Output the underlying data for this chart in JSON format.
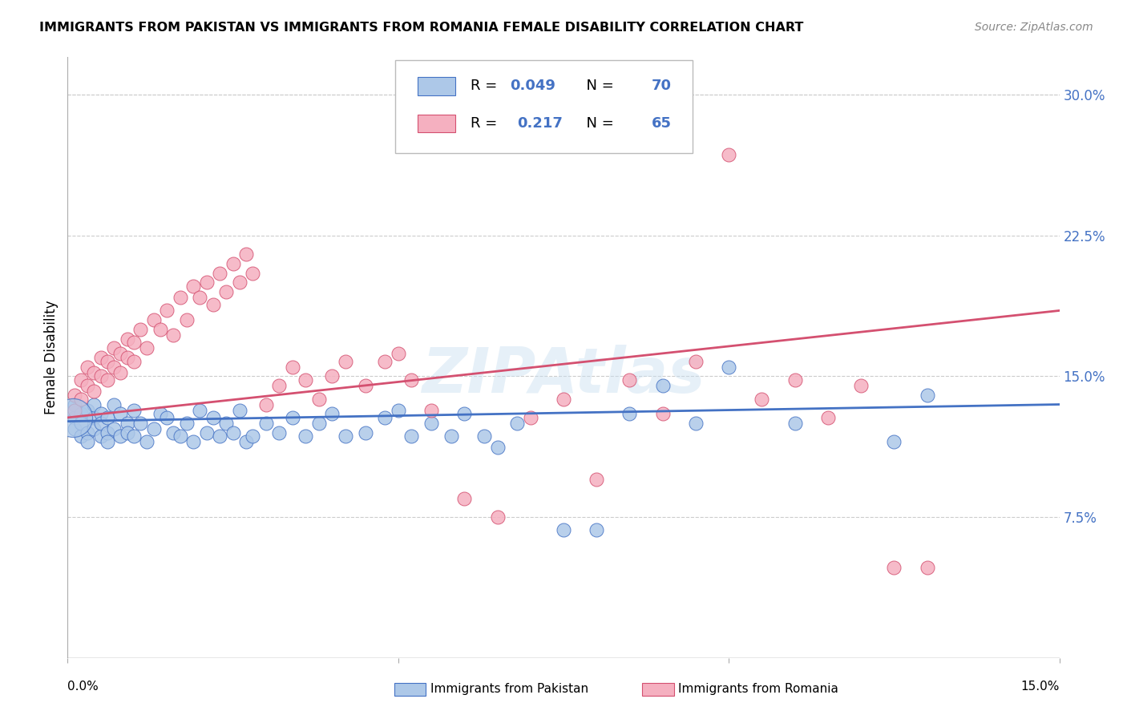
{
  "title": "IMMIGRANTS FROM PAKISTAN VS IMMIGRANTS FROM ROMANIA FEMALE DISABILITY CORRELATION CHART",
  "source": "Source: ZipAtlas.com",
  "ylabel": "Female Disability",
  "xlim": [
    0.0,
    0.15
  ],
  "ylim": [
    0.0,
    0.32
  ],
  "r_pakistan": 0.049,
  "n_pakistan": 70,
  "r_romania": 0.217,
  "n_romania": 65,
  "color_pakistan": "#adc8e8",
  "color_romania": "#f5b0c0",
  "line_color_pakistan": "#4472c4",
  "line_color_romania": "#d45070",
  "legend_label_pakistan": "Immigrants from Pakistan",
  "legend_label_romania": "Immigrants from Romania",
  "watermark": "ZIPAtlas",
  "pakistan_x": [
    0.001,
    0.001,
    0.001,
    0.002,
    0.002,
    0.002,
    0.003,
    0.003,
    0.003,
    0.004,
    0.004,
    0.004,
    0.005,
    0.005,
    0.005,
    0.006,
    0.006,
    0.006,
    0.007,
    0.007,
    0.008,
    0.008,
    0.009,
    0.009,
    0.01,
    0.01,
    0.011,
    0.012,
    0.013,
    0.014,
    0.015,
    0.016,
    0.017,
    0.018,
    0.019,
    0.02,
    0.021,
    0.022,
    0.023,
    0.024,
    0.025,
    0.026,
    0.027,
    0.028,
    0.03,
    0.032,
    0.034,
    0.036,
    0.038,
    0.04,
    0.042,
    0.045,
    0.048,
    0.05,
    0.052,
    0.055,
    0.058,
    0.06,
    0.063,
    0.065,
    0.068,
    0.075,
    0.08,
    0.085,
    0.09,
    0.095,
    0.1,
    0.11,
    0.125,
    0.13
  ],
  "pakistan_y": [
    0.128,
    0.135,
    0.122,
    0.13,
    0.118,
    0.125,
    0.132,
    0.12,
    0.115,
    0.128,
    0.135,
    0.122,
    0.118,
    0.13,
    0.125,
    0.12,
    0.128,
    0.115,
    0.135,
    0.122,
    0.13,
    0.118,
    0.125,
    0.12,
    0.132,
    0.118,
    0.125,
    0.115,
    0.122,
    0.13,
    0.128,
    0.12,
    0.118,
    0.125,
    0.115,
    0.132,
    0.12,
    0.128,
    0.118,
    0.125,
    0.12,
    0.132,
    0.115,
    0.118,
    0.125,
    0.12,
    0.128,
    0.118,
    0.125,
    0.13,
    0.118,
    0.12,
    0.128,
    0.132,
    0.118,
    0.125,
    0.118,
    0.13,
    0.118,
    0.112,
    0.125,
    0.068,
    0.068,
    0.13,
    0.145,
    0.125,
    0.155,
    0.125,
    0.115,
    0.14
  ],
  "romania_x": [
    0.001,
    0.001,
    0.002,
    0.002,
    0.003,
    0.003,
    0.004,
    0.004,
    0.005,
    0.005,
    0.006,
    0.006,
    0.007,
    0.007,
    0.008,
    0.008,
    0.009,
    0.009,
    0.01,
    0.01,
    0.011,
    0.012,
    0.013,
    0.014,
    0.015,
    0.016,
    0.017,
    0.018,
    0.019,
    0.02,
    0.021,
    0.022,
    0.023,
    0.024,
    0.025,
    0.026,
    0.027,
    0.028,
    0.03,
    0.032,
    0.034,
    0.036,
    0.038,
    0.04,
    0.042,
    0.045,
    0.048,
    0.05,
    0.052,
    0.055,
    0.06,
    0.065,
    0.07,
    0.075,
    0.08,
    0.085,
    0.09,
    0.095,
    0.1,
    0.105,
    0.11,
    0.115,
    0.12,
    0.125,
    0.13
  ],
  "romania_y": [
    0.14,
    0.132,
    0.148,
    0.138,
    0.155,
    0.145,
    0.152,
    0.142,
    0.16,
    0.15,
    0.158,
    0.148,
    0.165,
    0.155,
    0.162,
    0.152,
    0.17,
    0.16,
    0.168,
    0.158,
    0.175,
    0.165,
    0.18,
    0.175,
    0.185,
    0.172,
    0.192,
    0.18,
    0.198,
    0.192,
    0.2,
    0.188,
    0.205,
    0.195,
    0.21,
    0.2,
    0.215,
    0.205,
    0.135,
    0.145,
    0.155,
    0.148,
    0.138,
    0.15,
    0.158,
    0.145,
    0.158,
    0.162,
    0.148,
    0.132,
    0.085,
    0.075,
    0.128,
    0.138,
    0.095,
    0.148,
    0.13,
    0.158,
    0.268,
    0.138,
    0.148,
    0.128,
    0.145,
    0.048,
    0.048
  ],
  "pk_line_x0": 0.0,
  "pk_line_x1": 0.15,
  "pk_line_y0": 0.126,
  "pk_line_y1": 0.135,
  "ro_line_x0": 0.0,
  "ro_line_x1": 0.15,
  "ro_line_y0": 0.128,
  "ro_line_y1": 0.185
}
